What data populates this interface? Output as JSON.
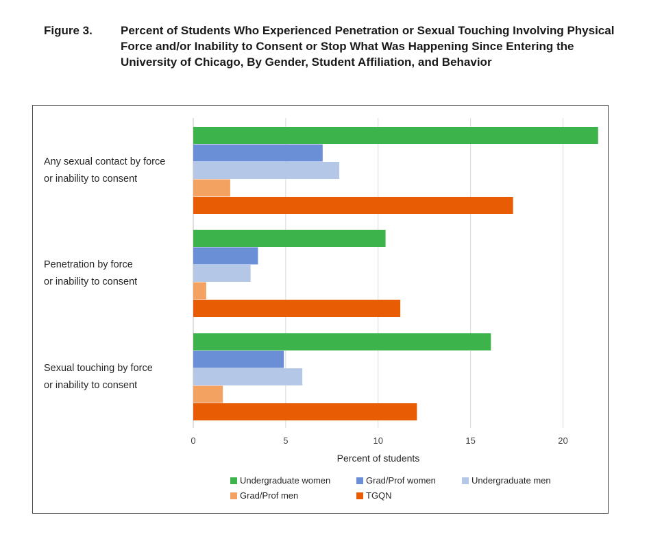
{
  "figure": {
    "label": "Figure 3.",
    "title": "Percent of Students Who Experienced Penetration or Sexual Touching Involving Physical Force and/or Inability to Consent or Stop What Was Happening Since Entering the University of Chicago, By Gender, Student Affiliation, and Behavior"
  },
  "chart_data": {
    "type": "bar",
    "orientation": "horizontal",
    "categories": [
      [
        "Any sexual contact by force",
        "or inability to consent"
      ],
      [
        "Penetration by force",
        "or inability to consent"
      ],
      [
        "Sexual touching by force",
        "or inability to consent"
      ]
    ],
    "series": [
      {
        "name": "Undergraduate women",
        "color": "#3cb44b",
        "values": [
          21.9,
          10.4,
          16.1
        ]
      },
      {
        "name": "Grad/Prof women",
        "color": "#6b8fd6",
        "values": [
          7.0,
          3.5,
          4.9
        ]
      },
      {
        "name": "Undergraduate men",
        "color": "#b4c7e7",
        "values": [
          7.9,
          3.1,
          5.9
        ]
      },
      {
        "name": "Grad/Prof men",
        "color": "#f4a261",
        "values": [
          2.0,
          0.7,
          1.6
        ]
      },
      {
        "name": "TGQN",
        "color": "#e85d04",
        "values": [
          17.3,
          11.2,
          12.1
        ]
      }
    ],
    "xlabel": "Percent of students",
    "ylabel": "",
    "xlim": [
      0,
      22
    ],
    "xticks": [
      0,
      5,
      10,
      15,
      20
    ],
    "grid": true,
    "legend_position": "bottom"
  }
}
